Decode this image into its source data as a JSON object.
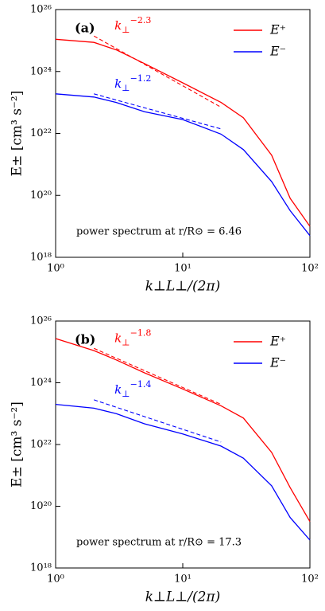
{
  "chart_data": [
    {
      "type": "line",
      "panel_label": "(a)",
      "annotation": "power spectrum at r/R⊙ = 6.46",
      "xlabel": "k⊥L⊥/(2π)",
      "ylabel": "E± [cm³ s⁻²]",
      "xscale": "log",
      "yscale": "log",
      "legend": "upper right",
      "xlim": [
        1,
        100
      ],
      "xticks": [
        {
          "value": 1,
          "label": "10⁰"
        },
        {
          "value": 10,
          "label": "10¹"
        },
        {
          "value": 100,
          "label": "10²"
        }
      ],
      "ylim": [
        1e+18,
        1e+26
      ],
      "yticks": [
        {
          "value": 1e+18,
          "label": "10¹⁸"
        },
        {
          "value": 1e+20,
          "label": "10²⁰"
        },
        {
          "value": 1e+22,
          "label": "10²²"
        },
        {
          "value": 1e+24,
          "label": "10²⁴"
        },
        {
          "value": 1e+26,
          "label": "10²⁶"
        }
      ],
      "x": [
        1,
        2,
        3,
        5,
        10,
        20,
        30,
        50,
        70,
        100
      ],
      "series": [
        {
          "name": "E⁺",
          "color": "#ff0000",
          "values": [
            1.1e+25,
            8.7e+24,
            5e+24,
            1.8e+24,
            4.3e+23,
            1e+23,
            3.2e+22,
            2e+21,
            8e+19,
            1e+19
          ]
        },
        {
          "name": "E⁻",
          "color": "#0000ff",
          "values": [
            1.9e+23,
            1.5e+23,
            1e+23,
            5e+22,
            2.8e+22,
            9.5e+21,
            3e+21,
            2.8e+20,
            3.2e+19,
            5e+18
          ]
        }
      ],
      "fits": [
        {
          "color": "#ff0000",
          "x": [
            2,
            20
          ],
          "values": [
            1.4e+25,
            7e+22
          ],
          "label": {
            "base": "k",
            "sub": "⊥",
            "sup": "−2.3"
          }
        },
        {
          "color": "#0000ff",
          "x": [
            2,
            20
          ],
          "values": [
            1.9e+23,
            1.4e+22
          ],
          "label": {
            "base": "k",
            "sub": "⊥",
            "sup": "−1.2"
          }
        }
      ]
    },
    {
      "type": "line",
      "panel_label": "(b)",
      "annotation": "power spectrum at r/R⊙ = 17.3",
      "xlabel": "k⊥L⊥/(2π)",
      "ylabel": "E± [cm³ s⁻²]",
      "xscale": "log",
      "yscale": "log",
      "legend": "upper right",
      "xlim": [
        1,
        100
      ],
      "xticks": [
        {
          "value": 1,
          "label": "10⁰"
        },
        {
          "value": 10,
          "label": "10¹"
        },
        {
          "value": 100,
          "label": "10²"
        }
      ],
      "ylim": [
        1e+18,
        1e+26
      ],
      "yticks": [
        {
          "value": 1e+18,
          "label": "10¹⁸"
        },
        {
          "value": 1e+20,
          "label": "10²⁰"
        },
        {
          "value": 1e+22,
          "label": "10²²"
        },
        {
          "value": 1e+24,
          "label": "10²⁴"
        },
        {
          "value": 1e+26,
          "label": "10²⁶"
        }
      ],
      "x": [
        1,
        2,
        3,
        5,
        10,
        20,
        30,
        50,
        70,
        100
      ],
      "series": [
        {
          "name": "E⁺",
          "color": "#ff0000",
          "values": [
            2.7e+25,
            1.1e+25,
            5.5e+24,
            2.1e+24,
            6.3e+23,
            1.8e+23,
            7.2e+22,
            5.6e+21,
            4e+20,
            3.2e+19
          ]
        },
        {
          "name": "E⁻",
          "color": "#0000ff",
          "values": [
            2e+23,
            1.5e+23,
            1e+23,
            4.7e+22,
            2.2e+22,
            8.9e+21,
            3.6e+21,
            4.6e+20,
            4.3e+19,
            8e+18
          ]
        }
      ],
      "fits": [
        {
          "color": "#ff0000",
          "x": [
            2,
            20
          ],
          "values": [
            1.3e+25,
            2e+23
          ],
          "label": {
            "base": "k",
            "sub": "⊥",
            "sup": "−1.8"
          }
        },
        {
          "color": "#0000ff",
          "x": [
            2,
            20
          ],
          "values": [
            2.8e+23,
            1.2e+22
          ],
          "label": {
            "base": "k",
            "sub": "⊥",
            "sup": "−1.4"
          }
        }
      ]
    }
  ]
}
